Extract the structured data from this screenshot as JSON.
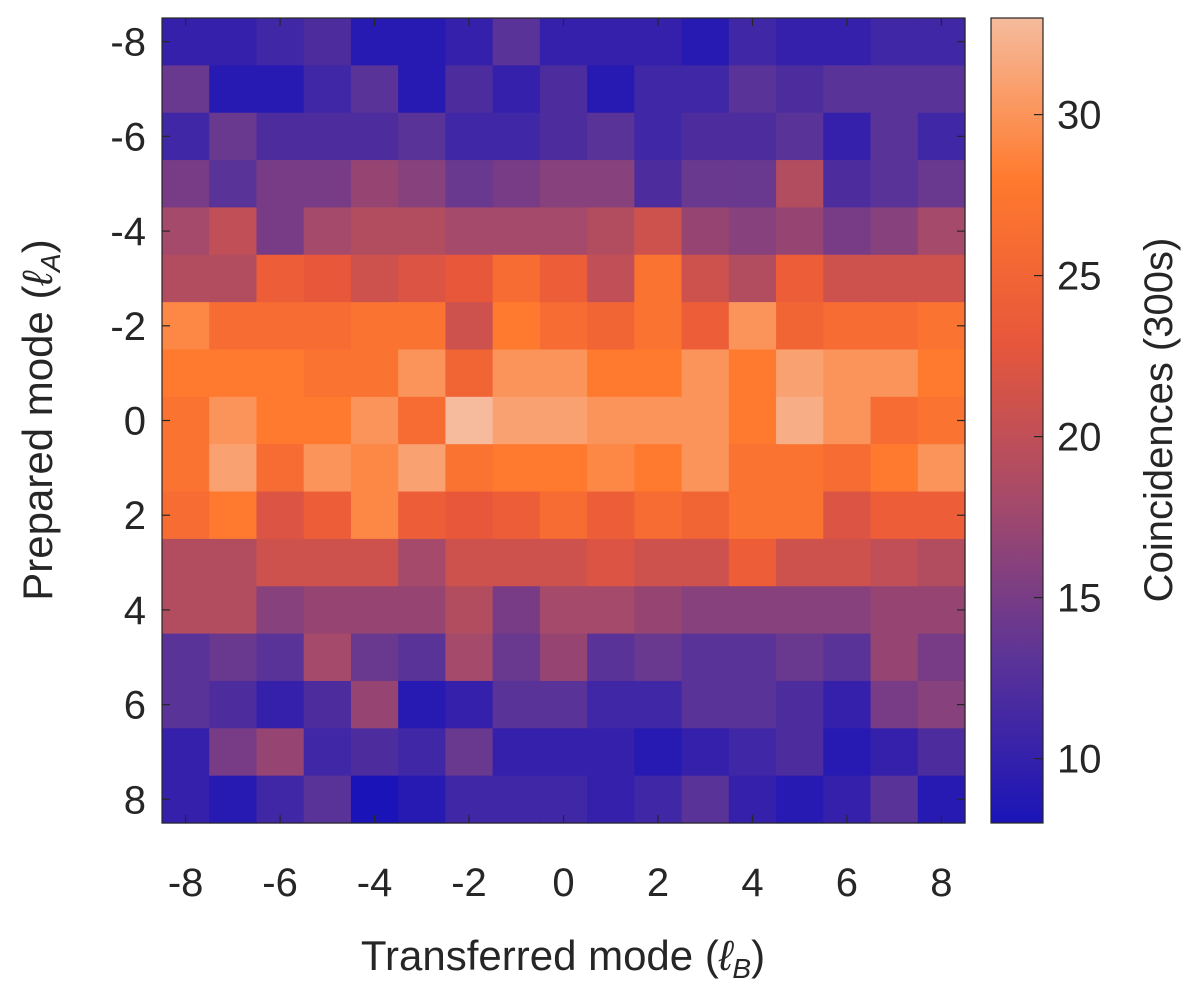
{
  "chart_data": {
    "type": "heatmap",
    "xlabel": "Transferred mode",
    "xlabel_symbol": "ℓ",
    "xlabel_sub": "B",
    "ylabel": "Prepared mode",
    "ylabel_symbol": "ℓ",
    "ylabel_sub": "A",
    "colorbar_label": "Coincidences (300s)",
    "x": [
      -8,
      -7,
      -6,
      -5,
      -4,
      -3,
      -2,
      -1,
      0,
      1,
      2,
      3,
      4,
      5,
      6,
      7,
      8
    ],
    "y": [
      -8,
      -7,
      -6,
      -5,
      -4,
      -3,
      -2,
      -1,
      0,
      1,
      2,
      3,
      4,
      5,
      6,
      7,
      8
    ],
    "x_ticks": [
      -8,
      -6,
      -4,
      -2,
      0,
      2,
      4,
      6,
      8
    ],
    "y_ticks": [
      -8,
      -6,
      -4,
      -2,
      0,
      2,
      4,
      6,
      8
    ],
    "colorbar_ticks": [
      10,
      15,
      20,
      25,
      30
    ],
    "clim": [
      8,
      33
    ],
    "colormap": [
      "#1a14b8",
      "#5a3398",
      "#a54a6a",
      "#e8573a",
      "#ff7a2e",
      "#f5bb9c"
    ],
    "values": [
      [
        10,
        10,
        11,
        12,
        9,
        9,
        10,
        13,
        10,
        10,
        10,
        9,
        11,
        10,
        10,
        11,
        11
      ],
      [
        14,
        9,
        9,
        11,
        13,
        9,
        12,
        10,
        12,
        9,
        11,
        11,
        13,
        12,
        13,
        13,
        13
      ],
      [
        11,
        14,
        12,
        12,
        12,
        13,
        11,
        11,
        12,
        13,
        11,
        12,
        12,
        13,
        10,
        13,
        11
      ],
      [
        15,
        13,
        15,
        15,
        17,
        16,
        14,
        15,
        16,
        16,
        12,
        14,
        14,
        19,
        12,
        13,
        14
      ],
      [
        18,
        20,
        15,
        18,
        19,
        19,
        18,
        18,
        18,
        19,
        21,
        17,
        16,
        17,
        15,
        16,
        18
      ],
      [
        19,
        19,
        24,
        23,
        21,
        22,
        23,
        26,
        24,
        20,
        27,
        21,
        19,
        24,
        21,
        21,
        21
      ],
      [
        29,
        26,
        26,
        26,
        27,
        27,
        21,
        28,
        26,
        25,
        27,
        24,
        30,
        25,
        26,
        26,
        27
      ],
      [
        28,
        28,
        28,
        27,
        27,
        30,
        25,
        30,
        30,
        28,
        28,
        30,
        28,
        31,
        30,
        30,
        28
      ],
      [
        27,
        30,
        28,
        28,
        30,
        26,
        33,
        31,
        31,
        30,
        30,
        30,
        28,
        32,
        30,
        26,
        27
      ],
      [
        27,
        31,
        26,
        30,
        29,
        31,
        27,
        28,
        28,
        29,
        28,
        30,
        27,
        27,
        26,
        28,
        30
      ],
      [
        26,
        28,
        22,
        24,
        29,
        24,
        23,
        24,
        26,
        24,
        26,
        25,
        27,
        27,
        22,
        24,
        24
      ],
      [
        19,
        19,
        21,
        21,
        21,
        18,
        21,
        21,
        21,
        22,
        21,
        21,
        24,
        21,
        21,
        20,
        19
      ],
      [
        19,
        19,
        16,
        17,
        17,
        17,
        19,
        15,
        18,
        18,
        17,
        16,
        16,
        16,
        16,
        17,
        17
      ],
      [
        13,
        14,
        13,
        18,
        14,
        13,
        18,
        14,
        17,
        13,
        14,
        13,
        13,
        14,
        13,
        17,
        15
      ],
      [
        13,
        12,
        10,
        12,
        17,
        9,
        10,
        13,
        13,
        11,
        11,
        13,
        13,
        12,
        10,
        15,
        16
      ],
      [
        10,
        15,
        17,
        11,
        12,
        11,
        14,
        10,
        10,
        10,
        9,
        10,
        11,
        12,
        9,
        10,
        12
      ],
      [
        10,
        9,
        11,
        13,
        8,
        9,
        11,
        11,
        11,
        10,
        11,
        13,
        10,
        9,
        10,
        13,
        9
      ]
    ]
  }
}
